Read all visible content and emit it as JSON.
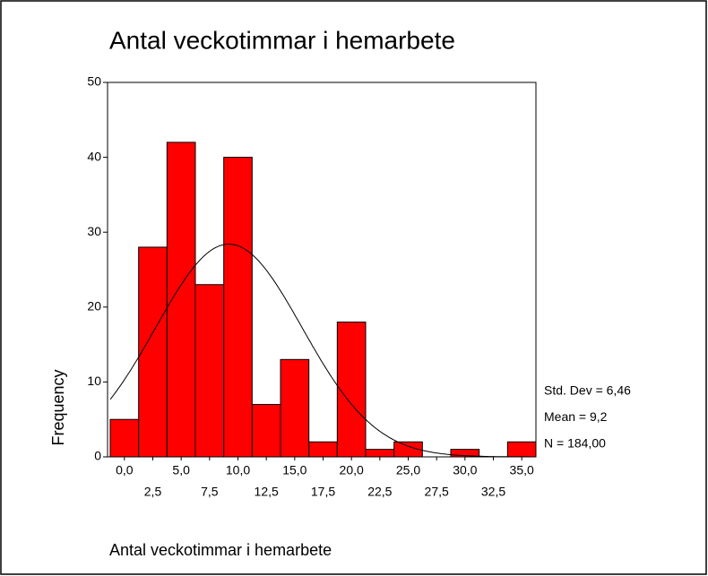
{
  "chart_data": {
    "type": "histogram",
    "title": "Antal veckotimmar i hemarbete",
    "xlabel": "Antal veckotimmar i hemarbete",
    "ylabel": "Frequency",
    "bins": [
      -1.25,
      1.25,
      3.75,
      6.25,
      8.75,
      11.25,
      13.75,
      16.25,
      18.75,
      21.25,
      23.75,
      26.25,
      28.75,
      31.25,
      33.75,
      36.25
    ],
    "values": [
      5,
      28,
      42,
      23,
      40,
      7,
      13,
      2,
      18,
      1,
      2,
      0,
      1,
      0,
      2
    ],
    "color": "#ff0000",
    "xlim": [
      -1.25,
      36.25
    ],
    "ylim": [
      0,
      50
    ],
    "yticks": [
      0,
      10,
      20,
      30,
      40,
      50
    ],
    "xticks": [
      {
        "value": 0,
        "label": "0,0"
      },
      {
        "value": 2.5,
        "label": "2,5"
      },
      {
        "value": 5,
        "label": "5,0"
      },
      {
        "value": 7.5,
        "label": "7,5"
      },
      {
        "value": 10,
        "label": "10,0"
      },
      {
        "value": 12.5,
        "label": "12,5"
      },
      {
        "value": 15,
        "label": "15,0"
      },
      {
        "value": 17.5,
        "label": "17,5"
      },
      {
        "value": 20,
        "label": "20,0"
      },
      {
        "value": 22.5,
        "label": "22,5"
      },
      {
        "value": 25,
        "label": "25,0"
      },
      {
        "value": 27.5,
        "label": "27,5"
      },
      {
        "value": 30,
        "label": "30,0"
      },
      {
        "value": 32.5,
        "label": "32,5"
      },
      {
        "value": 35,
        "label": "35,0"
      }
    ],
    "stats": [
      {
        "value": 6.46,
        "label": "Std. Dev = 6,46"
      },
      {
        "value": 9.2,
        "label": "Mean = 9,2"
      },
      {
        "value": 184,
        "label": "N = 184,00"
      }
    ]
  }
}
